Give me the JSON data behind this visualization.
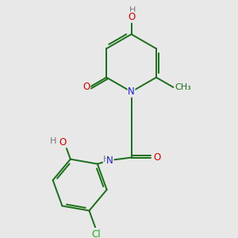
{
  "bg_color": "#e8e8e8",
  "atom_colors": {
    "C": "#1a6e1a",
    "N": "#2020cc",
    "O": "#cc0000",
    "Cl": "#20aa20",
    "H": "#777777"
  },
  "bond_color": "#1a6e1a",
  "lw": 1.4,
  "fs": 8.5
}
